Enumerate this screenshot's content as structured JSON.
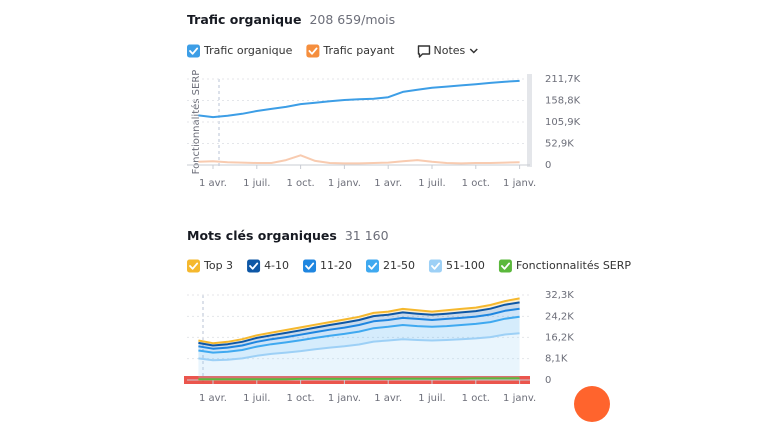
{
  "chart_data": [
    {
      "type": "line",
      "title": "Trafic organique",
      "subtitle": "208 659/mois",
      "notes_button": "Notes",
      "annotation": "Fonctionnalités SERP",
      "categories": [
        null,
        "1 avr.",
        null,
        null,
        "1 juil.",
        null,
        null,
        "1 oct.",
        null,
        null,
        "1 janv.",
        null,
        null,
        "1 avr.",
        null,
        null,
        "1 juil.",
        null,
        null,
        "1 oct.",
        null,
        null,
        "1 janv."
      ],
      "series": [
        {
          "name": "Trafic organique",
          "color": "#3d9ee6",
          "legend_color": "#3d9ee6",
          "values": [
            122000,
            118000,
            121000,
            126000,
            133000,
            138000,
            143000,
            150000,
            153000,
            157000,
            160000,
            162000,
            163000,
            167000,
            180000,
            185000,
            190000,
            193000,
            196000,
            199000,
            202000,
            205000,
            207000
          ]
        },
        {
          "name": "Trafic payant",
          "color": "#f8cbb0",
          "legend_color": "#f58e3d",
          "values": [
            8000,
            9000,
            7000,
            6000,
            5000,
            5000,
            12000,
            24000,
            10000,
            5000,
            4000,
            4000,
            5000,
            6000,
            9000,
            12000,
            8000,
            5000,
            4000,
            5000,
            5000,
            6000,
            7000
          ]
        }
      ],
      "ylim": [
        0,
        211700
      ],
      "yticks": [
        0,
        {
          "value": 52900,
          "label": "52,9K"
        },
        {
          "value": 105900,
          "label": "105,9K"
        },
        {
          "value": 158800,
          "label": "158,8K"
        },
        {
          "value": 211700,
          "label": "211,7K"
        }
      ],
      "grid": true
    },
    {
      "type": "area",
      "title": "Mots clés organiques",
      "subtitle": "31 160",
      "stacked": true,
      "categories": [
        null,
        "1 avr.",
        null,
        null,
        "1 juil.",
        null,
        null,
        "1 oct.",
        null,
        null,
        "1 janv.",
        null,
        null,
        "1 avr.",
        null,
        null,
        "1 juil.",
        null,
        null,
        "1 oct.",
        null,
        null,
        "1 janv."
      ],
      "series": [
        {
          "name": "Top 3",
          "color": "#f5b82e",
          "values": [
            900,
            900,
            900,
            1000,
            1000,
            1000,
            1100,
            1100,
            1100,
            1100,
            1200,
            1200,
            1200,
            1200,
            1300,
            1300,
            1200,
            1300,
            1300,
            1300,
            1400,
            1400,
            1500
          ]
        },
        {
          "name": "4-10",
          "color": "#0e57a6",
          "values": [
            1300,
            1200,
            1300,
            1400,
            1500,
            1500,
            1600,
            1700,
            1700,
            1800,
            1900,
            1900,
            2000,
            2000,
            2100,
            2000,
            2000,
            2000,
            2100,
            2100,
            2200,
            2300,
            2400
          ]
        },
        {
          "name": "11-20",
          "color": "#1f86e0",
          "values": [
            1600,
            1500,
            1600,
            1700,
            1800,
            1900,
            2000,
            2100,
            2200,
            2300,
            2400,
            2500,
            2600,
            2600,
            2700,
            2700,
            2600,
            2700,
            2700,
            2800,
            2900,
            3000,
            3100
          ]
        },
        {
          "name": "21-50",
          "color": "#3fa9f0",
          "values": [
            3000,
            2900,
            3000,
            3200,
            3500,
            3700,
            3900,
            4100,
            4300,
            4500,
            4700,
            4900,
            5100,
            5200,
            5400,
            5300,
            5200,
            5300,
            5400,
            5500,
            5700,
            6000,
            6200
          ]
        },
        {
          "name": "51-100",
          "color": "#9dd0f6",
          "values": [
            8200,
            7500,
            7700,
            8200,
            9200,
            9900,
            10400,
            11000,
            11700,
            12300,
            12800,
            13500,
            14600,
            15000,
            15500,
            15200,
            15000,
            15200,
            15500,
            15800,
            16300,
            17300,
            17800
          ]
        },
        {
          "name": "Fonctionnalités SERP",
          "color": "#5bb83c",
          "stacked": false,
          "values": [
            300,
            300,
            300,
            300,
            300,
            300,
            300,
            400,
            400,
            400,
            400,
            400,
            400,
            400,
            500,
            500,
            500,
            500,
            500,
            600,
            600,
            600,
            700
          ]
        }
      ],
      "ylim": [
        0,
        32300
      ],
      "yticks": [
        0,
        {
          "value": 8100,
          "label": "8,1K"
        },
        {
          "value": 16200,
          "label": "16,2K"
        },
        {
          "value": 24200,
          "label": "24,2K"
        },
        {
          "value": 32300,
          "label": "32,3K"
        }
      ],
      "grid": true
    }
  ]
}
